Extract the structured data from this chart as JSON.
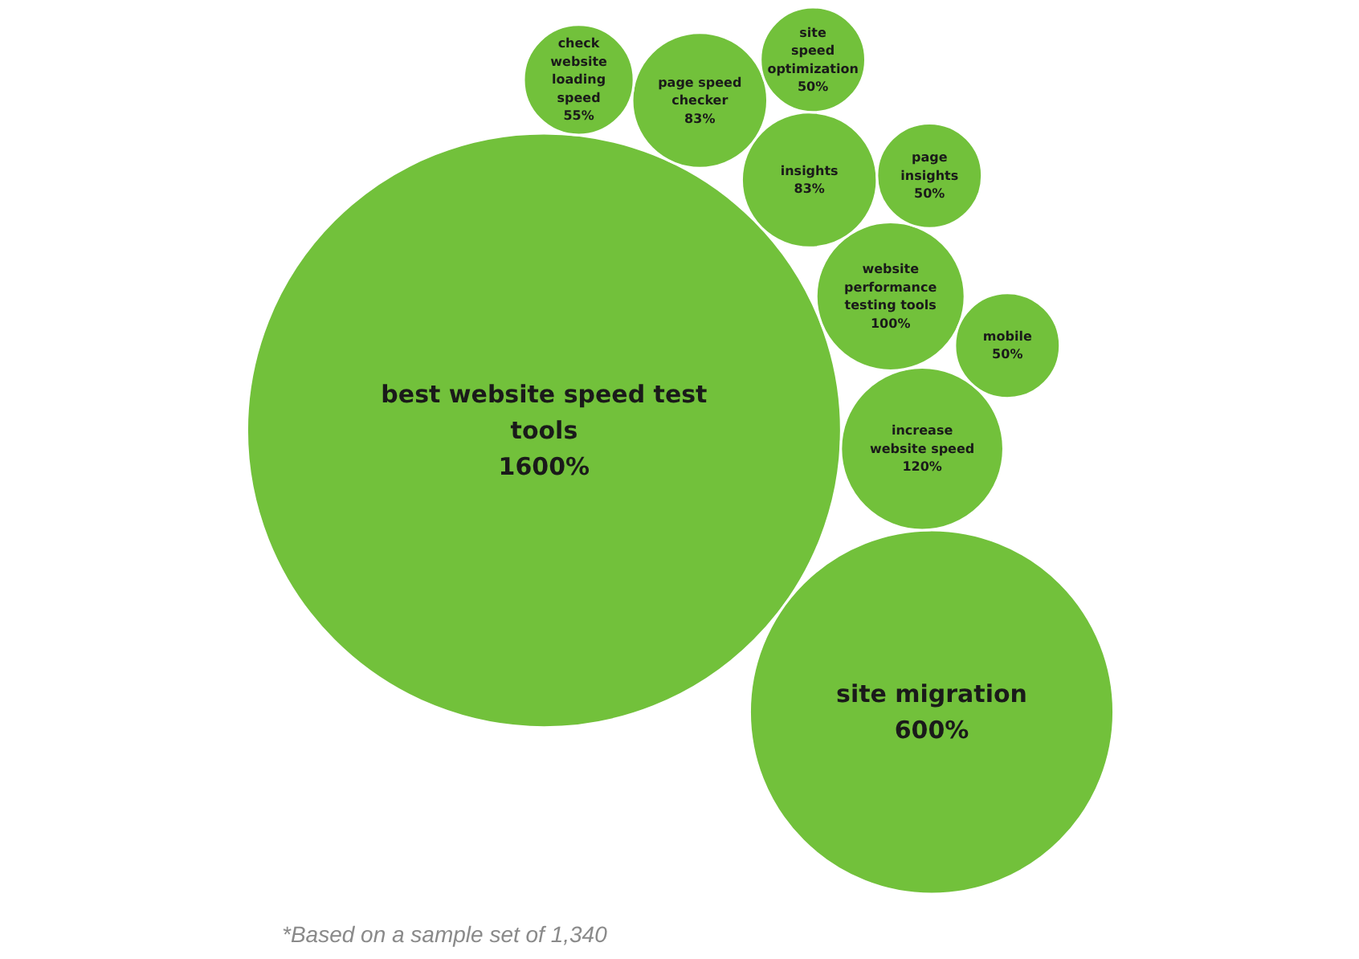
{
  "chart_data": {
    "type": "other",
    "categories": [
      "best website speed test tools",
      "site migration",
      "increase website speed",
      "website performance testing tools",
      "insights",
      "page speed checker",
      "check website loading speed",
      "page insights",
      "mobile",
      "site speed optimization"
    ],
    "values": [
      1600,
      600,
      120,
      100,
      83,
      83,
      55,
      50,
      50,
      50
    ],
    "value_labels": [
      "1600%",
      "600%",
      "120%",
      "100%",
      "83%",
      "83%",
      "55%",
      "50%",
      "50%",
      "50%"
    ],
    "colors": [
      "#72c13b",
      "#72c13b",
      "#72c13b",
      "#72c13b",
      "#72c13b",
      "#72c13b",
      "#72c13b",
      "#72c13b",
      "#72c13b",
      "#72c13b"
    ],
    "annotations": [
      "*Based on a sample set of 1,340"
    ]
  }
}
